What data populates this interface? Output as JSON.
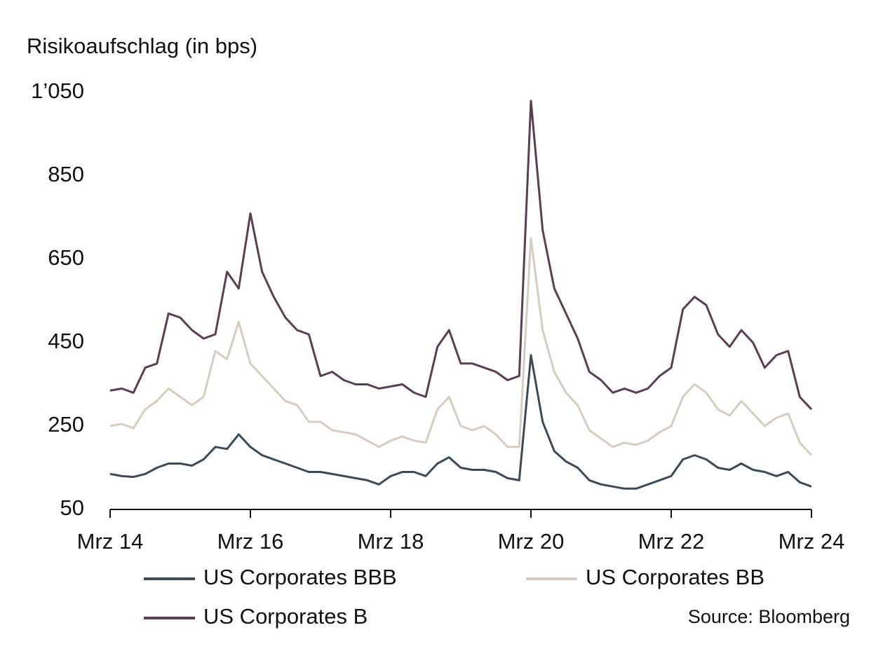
{
  "chart_data": {
    "type": "line",
    "y_axis_label": "Risikoaufschlag (in bps)",
    "source": "Source: Bloomberg",
    "categories": [
      "Mrz 14",
      null,
      null,
      null,
      null,
      null,
      null,
      null,
      null,
      null,
      null,
      null,
      "Mrz 16",
      null,
      null,
      null,
      null,
      null,
      null,
      null,
      null,
      null,
      null,
      null,
      "Mrz 18",
      null,
      null,
      null,
      null,
      null,
      null,
      null,
      null,
      null,
      null,
      null,
      "Mrz 20",
      null,
      null,
      null,
      null,
      null,
      null,
      null,
      null,
      null,
      null,
      null,
      "Mrz 22",
      null,
      null,
      null,
      null,
      null,
      null,
      null,
      null,
      null,
      null,
      null,
      "Mrz 24"
    ],
    "ylim": [
      50,
      1050
    ],
    "yticks": [
      50,
      250,
      450,
      650,
      850,
      {
        "value": 1050,
        "label": "1’050"
      }
    ],
    "series": [
      {
        "name": "US Corporates BBB",
        "color": "#3d4a54",
        "values": [
          135,
          130,
          128,
          135,
          150,
          160,
          160,
          155,
          170,
          200,
          195,
          230,
          200,
          180,
          170,
          160,
          150,
          140,
          140,
          135,
          130,
          125,
          120,
          110,
          130,
          140,
          140,
          130,
          160,
          175,
          150,
          145,
          145,
          140,
          125,
          120,
          420,
          260,
          190,
          165,
          150,
          120,
          110,
          105,
          100,
          100,
          110,
          120,
          130,
          170,
          180,
          170,
          150,
          145,
          160,
          145,
          140,
          130,
          140,
          115,
          105
        ]
      },
      {
        "name": "US Corporates BB",
        "color": "#d6cdc2",
        "values": [
          250,
          255,
          245,
          290,
          310,
          340,
          320,
          300,
          320,
          430,
          410,
          500,
          400,
          370,
          340,
          310,
          300,
          260,
          260,
          240,
          235,
          230,
          215,
          200,
          215,
          225,
          215,
          210,
          290,
          320,
          250,
          240,
          250,
          230,
          200,
          200,
          700,
          480,
          380,
          330,
          300,
          240,
          220,
          200,
          210,
          205,
          215,
          235,
          250,
          320,
          350,
          330,
          290,
          275,
          310,
          280,
          250,
          270,
          280,
          210,
          180
        ]
      },
      {
        "name": "US Corporates B",
        "color": "#5a3f52",
        "values": [
          335,
          340,
          330,
          390,
          400,
          520,
          510,
          480,
          460,
          470,
          620,
          580,
          760,
          620,
          560,
          510,
          480,
          470,
          370,
          380,
          360,
          350,
          350,
          340,
          345,
          350,
          330,
          320,
          440,
          480,
          400,
          400,
          390,
          380,
          360,
          370,
          1030,
          720,
          580,
          520,
          460,
          380,
          360,
          330,
          340,
          330,
          340,
          370,
          390,
          530,
          560,
          540,
          470,
          440,
          480,
          450,
          390,
          420,
          430,
          320,
          290
        ]
      }
    ]
  }
}
